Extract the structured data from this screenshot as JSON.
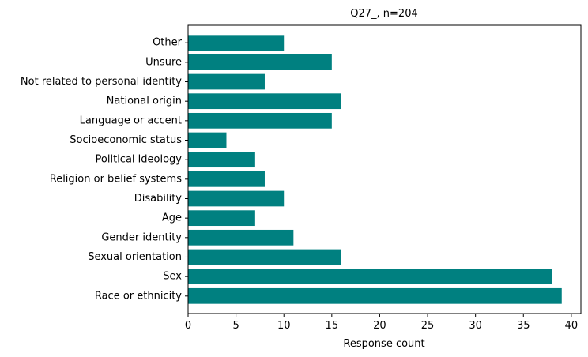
{
  "chart_data": {
    "type": "bar",
    "orientation": "horizontal",
    "title": "Q27_, n=204",
    "xlabel": "Response count",
    "ylabel": "",
    "xlim": [
      0,
      41
    ],
    "xticks": [
      0,
      5,
      10,
      15,
      20,
      25,
      30,
      35,
      40
    ],
    "grid": false,
    "bar_color": "#008080",
    "categories": [
      "Race or ethnicity",
      "Sex",
      "Sexual orientation",
      "Gender identity",
      "Age",
      "Disability",
      "Religion or belief systems",
      "Political ideology",
      "Socioeconomic status",
      "Language or accent",
      "National origin",
      "Not related to personal identity",
      "Unsure",
      "Other"
    ],
    "values": [
      39,
      38,
      16,
      11,
      7,
      10,
      8,
      7,
      4,
      15,
      16,
      8,
      15,
      10
    ]
  }
}
